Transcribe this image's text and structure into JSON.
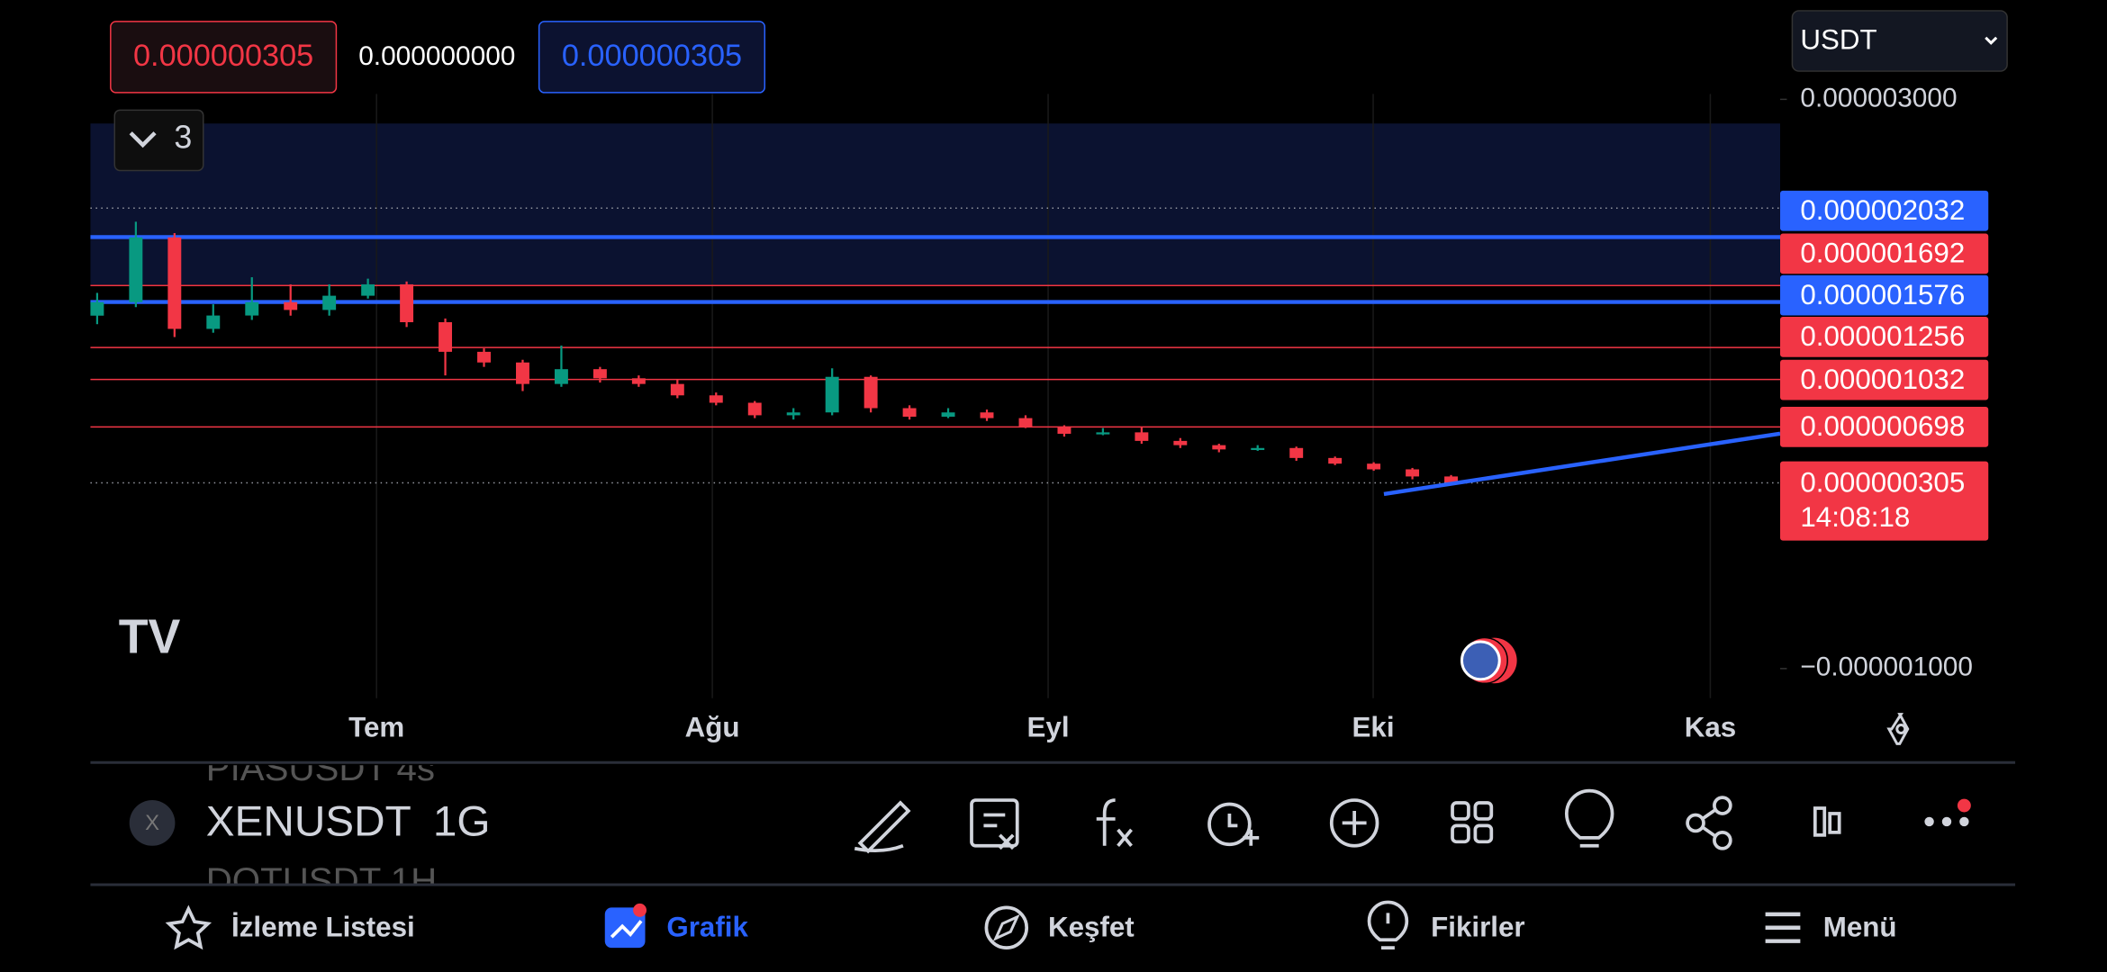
{
  "header": {
    "bid": "0.000000305",
    "spread": "0.000000000",
    "ask": "0.000000305",
    "currency": "USDT",
    "indicators_count": "3"
  },
  "chart_data": {
    "type": "candlestick",
    "open": [
      1.48e-06,
      1.575e-06,
      2.03e-06,
      1.387e-06,
      1.481e-06,
      1.575e-06,
      1.52e-06,
      1.62e-06,
      1.7e-06,
      1.434e-06,
      1.226e-06,
      1.151e-06,
      1e-06,
      1.104e-06,
      1.04e-06,
      1e-06,
      9.2e-07,
      8.68e-07,
      7.8e-07,
      8e-07,
      1.05e-06,
      8.3e-07,
      7.7e-07,
      8e-07,
      7.6e-07,
      7e-07,
      6.5e-07,
      6.6e-07,
      6e-07,
      5.7e-07,
      5.4e-07,
      5.5e-07,
      4.8e-07,
      4.4e-07,
      4e-07,
      3.5e-07
    ],
    "high": [
      1.64e-06,
      2.14e-06,
      2.06e-06,
      1.56e-06,
      1.75e-06,
      1.7e-06,
      1.7e-06,
      1.74e-06,
      1.72e-06,
      1.46e-06,
      1.25e-06,
      1.17e-06,
      1.27e-06,
      1.12e-06,
      1.06e-06,
      1.03e-06,
      9.4e-07,
      8.8e-07,
      8.3e-07,
      1.11e-06,
      1.06e-06,
      8.5e-07,
      8.3e-07,
      8.2e-07,
      7.8e-07,
      7.1e-07,
      6.9e-07,
      7e-07,
      6.2e-07,
      5.8e-07,
      5.7e-07,
      5.6e-07,
      4.9e-07,
      4.5e-07,
      4.1e-07,
      3.6e-07
    ],
    "low": [
      1.42e-06,
      1.54e-06,
      1.33e-06,
      1.36e-06,
      1.45e-06,
      1.48e-06,
      1.48e-06,
      1.6e-06,
      1.4e-06,
      1.06e-06,
      1.12e-06,
      9.5e-07,
      9.8e-07,
      1.01e-06,
      9.8e-07,
      9e-07,
      8.5e-07,
      7.6e-07,
      7.5e-07,
      7.8e-07,
      8e-07,
      7.5e-07,
      7.6e-07,
      7.4e-07,
      6.9e-07,
      6.3e-07,
      6.4e-07,
      5.8e-07,
      5.5e-07,
      5.2e-07,
      5.3e-07,
      4.6e-07,
      4.3e-07,
      3.9e-07,
      3.3e-07,
      3e-07
    ],
    "close": [
      1.575e-06,
      2.03e-06,
      1.387e-06,
      1.481e-06,
      1.575e-06,
      1.52e-06,
      1.62e-06,
      1.7e-06,
      1.434e-06,
      1.226e-06,
      1.151e-06,
      1e-06,
      1.104e-06,
      1.04e-06,
      1e-06,
      9.2e-07,
      8.68e-07,
      7.8e-07,
      8e-07,
      1.05e-06,
      8.3e-07,
      7.7e-07,
      8e-07,
      7.6e-07,
      7e-07,
      6.5e-07,
      6.6e-07,
      6e-07,
      5.7e-07,
      5.4e-07,
      5.5e-07,
      4.8e-07,
      4.4e-07,
      4e-07,
      3.5e-07,
      3.05e-07
    ],
    "up_color": "#089981",
    "down_color": "#f23645",
    "ylim": [
      -1e-06,
      3e-06
    ],
    "yticks": [
      {
        "value": 3e-06,
        "label": "0.000003000"
      },
      {
        "value": -1e-06,
        "label": "−0.000001000"
      }
    ],
    "month_labels": [
      "Tem",
      "Ağu",
      "Eyl",
      "Eki",
      "Kas"
    ],
    "price_lines": [
      {
        "value": 2.032e-06,
        "label": "0.000002032",
        "color": "#2962ff"
      },
      {
        "value": 1.692e-06,
        "label": "0.000001692",
        "color": "#f23645"
      },
      {
        "value": 1.576e-06,
        "label": "0.000001576",
        "color": "#2962ff"
      },
      {
        "value": 1.256e-06,
        "label": "0.000001256",
        "color": "#f23645"
      },
      {
        "value": 1.032e-06,
        "label": "0.000001032",
        "color": "#f23645"
      },
      {
        "value": 6.98e-07,
        "label": "0.000000698",
        "color": "#f23645"
      }
    ],
    "last_price": {
      "value": 3.05e-07,
      "label": "0.000000305",
      "countdown": "14:08:18",
      "color": "#f23645"
    }
  },
  "symbol": {
    "prev": "PIASUSDT  4s",
    "name": "XENUSDT",
    "interval": "1G",
    "next": "DOTUSDT  1H"
  },
  "nav": [
    "İzleme Listesi",
    "Grafik",
    "Keşfet",
    "Fikirler",
    "Menü"
  ]
}
